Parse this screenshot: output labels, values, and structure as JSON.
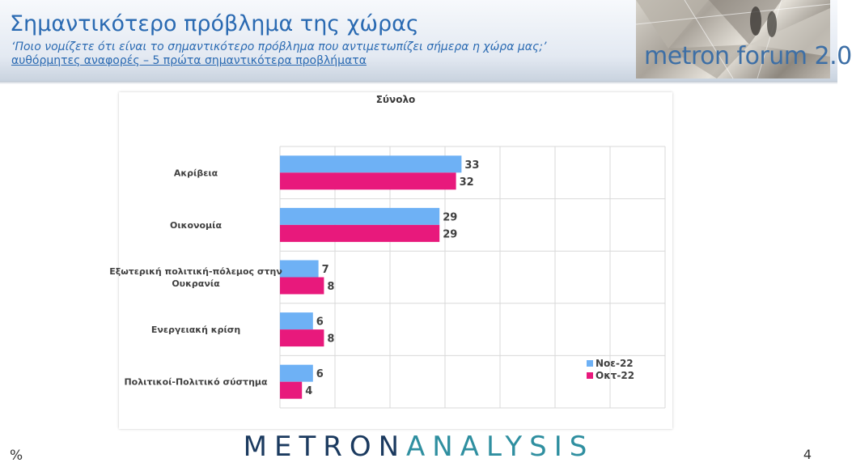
{
  "header": {
    "title": "Σημαντικότερο πρόβλημα της χώρας",
    "subtitle": "‘Ποιο νομίζετε ότι  είναι το σημαντικότερο πρόβλημα που αντιμετωπίζει σήμερα η χώρα μας;’",
    "subtitle2": "αυθόρμητες αναφορές – 5 πρώτα σημαντικότερα προβλήματα",
    "brand": "metron forum 2.0"
  },
  "chart_data": {
    "type": "bar",
    "orientation": "horizontal",
    "title": "Σύνολο",
    "categories": [
      "Ακρίβεια",
      "Οικονομία",
      "Εξωτερική πολιτική-πόλεμος στην Ουκρανία",
      "Ενεργειακή κρίση",
      "Πολιτικοί-Πολιτικό σύστημα"
    ],
    "series": [
      {
        "name": "Νοε-22",
        "color": "#6eb1f5",
        "values": [
          33,
          29,
          7,
          6,
          6
        ]
      },
      {
        "name": "Οκτ-22",
        "color": "#e8197c",
        "values": [
          32,
          29,
          8,
          8,
          4
        ]
      }
    ],
    "xlim": [
      0,
      70
    ],
    "grid": true,
    "legend": "bottom-right"
  },
  "footer": {
    "logo_part1": "METRON",
    "logo_part2": "ANALYSIS",
    "percent_sign": "%",
    "page_number": "4"
  }
}
